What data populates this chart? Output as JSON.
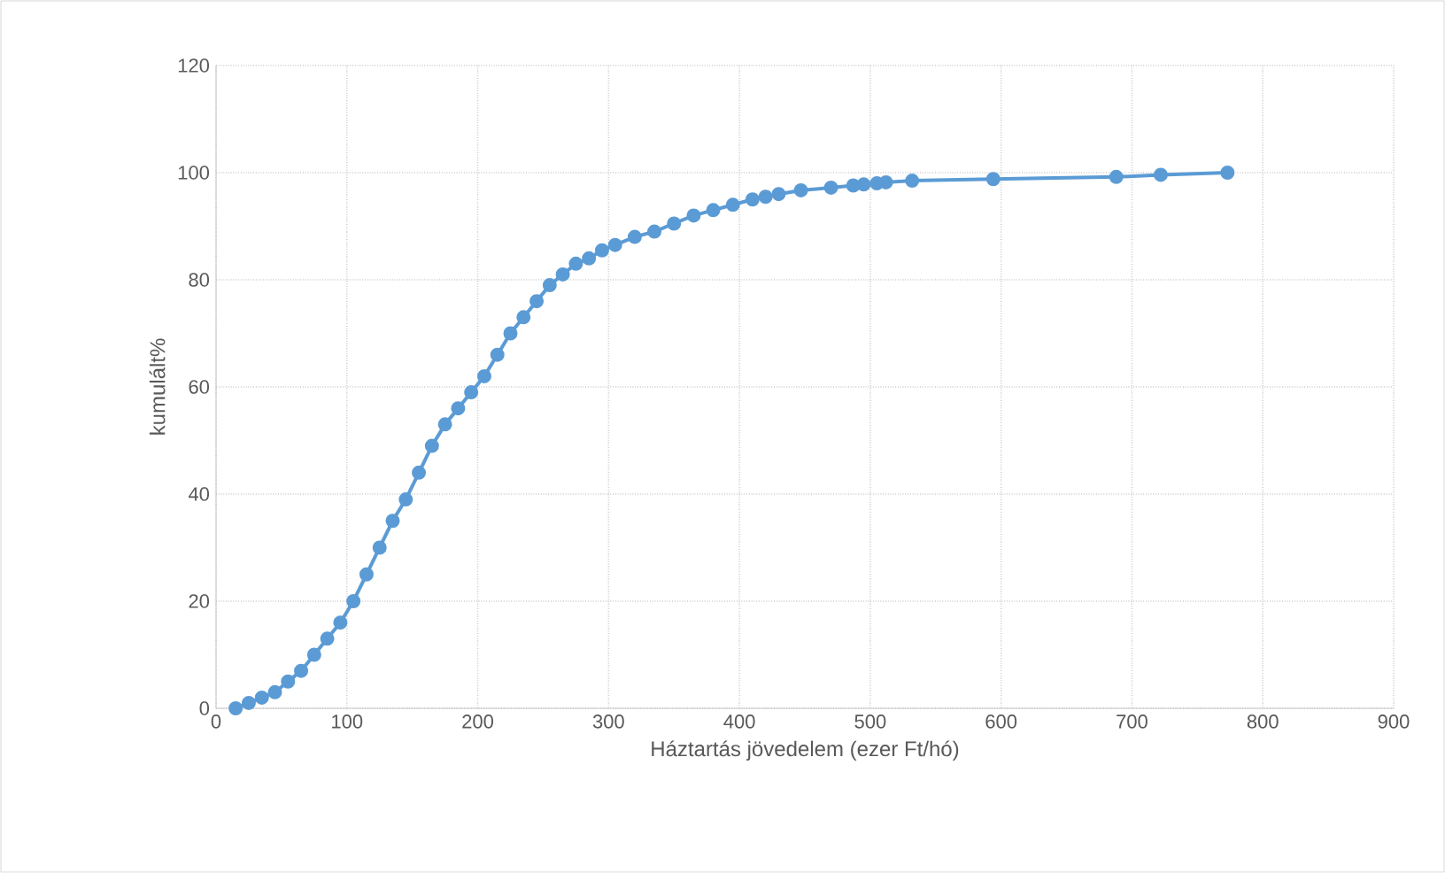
{
  "chart_data": {
    "type": "line",
    "xlabel": "Háztartás jövedelem (ezer  Ft/hó)",
    "ylabel": "kumulált%",
    "xlim": [
      0,
      900
    ],
    "xticks": [
      0,
      100,
      200,
      300,
      400,
      500,
      600,
      700,
      800,
      900
    ],
    "ylim": [
      0,
      120
    ],
    "yticks": [
      0,
      20,
      40,
      60,
      80,
      100,
      120
    ],
    "grid": true,
    "marker": "circle",
    "line_style": "solid",
    "series": [
      {
        "color": "#5b9bd5",
        "x": [
          15,
          25,
          35,
          45,
          55,
          65,
          75,
          85,
          95,
          105,
          115,
          125,
          135,
          145,
          155,
          165,
          175,
          185,
          195,
          205,
          215,
          225,
          235,
          245,
          255,
          265,
          275,
          285,
          295,
          305,
          320,
          335,
          350,
          365,
          380,
          395,
          410,
          420,
          430,
          447,
          470,
          487,
          495,
          505,
          512,
          532,
          594,
          688,
          722,
          773
        ],
        "values": [
          0,
          1,
          2,
          3,
          5,
          7,
          10,
          13,
          16,
          20,
          25,
          30,
          35,
          39,
          44,
          49,
          53,
          56,
          59,
          62,
          66,
          70,
          73,
          76,
          79,
          81,
          83,
          84,
          85.5,
          86.5,
          88,
          89,
          90.5,
          92,
          93,
          94,
          95,
          95.5,
          96,
          96.7,
          97.2,
          97.6,
          97.8,
          98,
          98.2,
          98.5,
          98.8,
          99.2,
          99.6,
          100
        ]
      }
    ]
  }
}
